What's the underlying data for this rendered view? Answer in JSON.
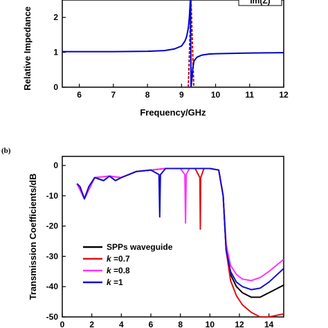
{
  "chart_data": [
    {
      "type": "line",
      "xlabel": "Frequency/GHz",
      "ylabel": "Relative Impedance",
      "xlim": [
        5.5,
        12
      ],
      "ylim": [
        0,
        2.5
      ],
      "xticks": [
        6,
        7,
        8,
        9,
        10,
        11,
        12
      ],
      "yticks": [
        0,
        1,
        2
      ],
      "legend": {
        "position": "top-right",
        "entries": [
          "Im(Z)"
        ]
      },
      "series": [
        {
          "name": "",
          "color": "#c00000",
          "dash": true,
          "x": [
            9.2,
            9.24,
            9.28,
            9.32,
            9.36
          ],
          "y": [
            0.0,
            1.2,
            2.5,
            1.2,
            0.0
          ]
        },
        {
          "name": "",
          "color": "#0000cc",
          "dash": false,
          "x": [
            5.5,
            6.0,
            7.0,
            8.0,
            8.5,
            8.8,
            9.0,
            9.1,
            9.15,
            9.2,
            9.23,
            9.26,
            9.28,
            9.3,
            9.33,
            9.37,
            9.45,
            9.6,
            9.8,
            10.0,
            10.5,
            11.0,
            11.5,
            12.0
          ],
          "y": [
            1.02,
            1.02,
            1.02,
            1.03,
            1.05,
            1.1,
            1.18,
            1.32,
            1.45,
            1.7,
            2.0,
            2.5,
            0.0,
            0.2,
            0.55,
            0.76,
            0.86,
            0.92,
            0.95,
            0.96,
            0.97,
            0.98,
            0.985,
            0.99
          ]
        }
      ]
    },
    {
      "type": "line",
      "xlabel": "",
      "ylabel": "Transmission Coefficients/dB",
      "panel_label": "(b)",
      "xlim": [
        0,
        15
      ],
      "ylim": [
        -50,
        3
      ],
      "xticks": [
        0,
        2,
        4,
        6,
        8,
        10,
        12,
        14
      ],
      "yticks": [
        0,
        -10,
        -20,
        -30,
        -40,
        -50
      ],
      "legend": {
        "position": "lower-left"
      },
      "series": [
        {
          "name": "SPPs waveguide",
          "label_italic": "",
          "label_value": "",
          "color": "#000000",
          "x": [
            1,
            1.2,
            1.5,
            1.8,
            2.2,
            2.8,
            3.2,
            3.6,
            4.0,
            4.5,
            5.0,
            6.0,
            7.0,
            8.0,
            9.0,
            10.0,
            10.6,
            10.9,
            11.1,
            11.4,
            11.8,
            12.2,
            12.8,
            13.4,
            14.0,
            15.0
          ],
          "y": [
            -6,
            -7,
            -11,
            -7,
            -4,
            -5,
            -3.5,
            -5,
            -4,
            -3,
            -2,
            -1.5,
            -1,
            -1,
            -1,
            -1,
            -1.5,
            -10,
            -28,
            -36,
            -40,
            -42,
            -43.5,
            -43.5,
            -42,
            -39.5
          ]
        },
        {
          "name": "",
          "label_italic": "k",
          "label_value": " =0.7",
          "color": "#e01010",
          "x": [
            1,
            1.5,
            2.2,
            3.2,
            4.0,
            5.0,
            6.0,
            7.0,
            8.0,
            9.0,
            9.32,
            9.35,
            9.38,
            9.6,
            10.0,
            10.6,
            10.9,
            11.1,
            11.4,
            11.8,
            12.2,
            12.8,
            13.4,
            14.0,
            15.0
          ],
          "y": [
            -6,
            -11,
            -4,
            -3.5,
            -4,
            -2,
            -1.5,
            -1,
            -1,
            -1,
            -4,
            -21,
            -4,
            -1,
            -1,
            -1.5,
            -10,
            -28,
            -38,
            -43,
            -46,
            -48.5,
            -50,
            -50,
            -49
          ]
        },
        {
          "name": "",
          "label_italic": "k",
          "label_value": " =0.8",
          "color": "#ff33ff",
          "x": [
            1,
            1.5,
            2.2,
            3.2,
            4.0,
            5.0,
            6.0,
            7.0,
            8.0,
            8.3,
            8.35,
            8.4,
            8.6,
            9.0,
            10.0,
            10.6,
            10.9,
            11.1,
            11.4,
            11.8,
            12.2,
            12.8,
            13.4,
            14.0,
            15.0
          ],
          "y": [
            -6,
            -11,
            -4,
            -3.5,
            -4,
            -2,
            -1.5,
            -1,
            -1,
            -3,
            -19,
            -3,
            -1,
            -1,
            -1,
            -1.5,
            -10,
            -26,
            -33,
            -36,
            -37.5,
            -38,
            -37,
            -35,
            -31
          ]
        },
        {
          "name": "",
          "label_italic": "k",
          "label_value": " =1",
          "color": "#1010cc",
          "x": [
            1,
            1.2,
            1.5,
            1.8,
            2.2,
            2.8,
            3.2,
            3.6,
            4.0,
            4.5,
            5.0,
            6.0,
            6.55,
            6.6,
            6.65,
            7.0,
            8.0,
            9.0,
            10.0,
            10.6,
            10.9,
            11.1,
            11.4,
            11.8,
            12.2,
            12.8,
            13.4,
            14.0,
            15.0
          ],
          "y": [
            -6,
            -7,
            -11,
            -7,
            -4,
            -5,
            -3.5,
            -5,
            -4,
            -3,
            -2,
            -1.5,
            -3,
            -17,
            -3,
            -1,
            -1,
            -1,
            -1,
            -1.5,
            -10,
            -28,
            -35,
            -38.5,
            -40,
            -41,
            -40.5,
            -38.5,
            -34
          ]
        }
      ]
    }
  ]
}
